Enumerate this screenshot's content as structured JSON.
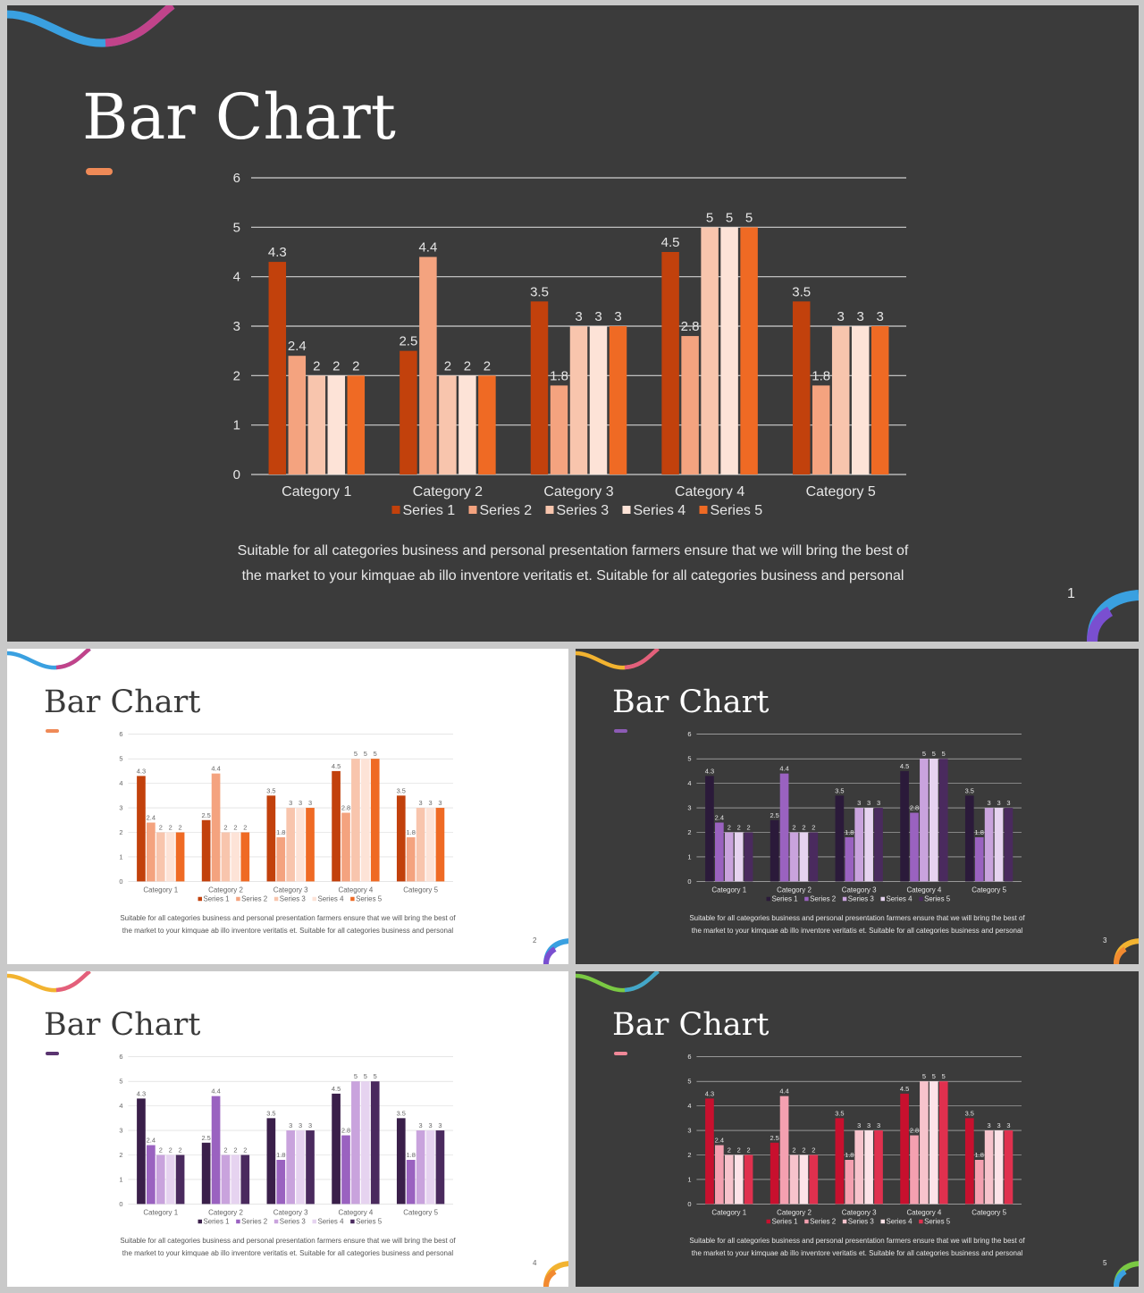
{
  "slides": [
    {
      "title": "Bar Chart",
      "page": "1",
      "body_lines": [
        "Suitable  for  all  categories  business  and  personal  presentation  farmers  ensure  that  we  will  bring  the  best  of",
        "the  market  to  your  kimquae  ab  illo  inventore  veritatis  et.  Suitable  for  all  categories  business  and  personal"
      ],
      "theme": "dark",
      "colors": {
        "series": [
          "#c2410c",
          "#f4a37f",
          "#f8c5ad",
          "#fde3d7",
          "#ef6a24"
        ],
        "accent": "#ef8a57",
        "ribbon": [
          "#3aa0e0",
          "#7a4fd0",
          "#d9327a"
        ],
        "corner": [
          "#3aa0e0",
          "#7a4fd0"
        ]
      }
    },
    {
      "title": "Bar Chart",
      "page": "2",
      "body_lines": [
        "Suitable  for  all  categories  business  and  personal  presentation  farmers  ensure  that  we  will  bring  the  best  of",
        "the  market  to  your  kimquae  ab  illo  inventore  veritatis  et.  Suitable  for  all  categories  business  and  personal"
      ],
      "theme": "light",
      "colors": {
        "series": [
          "#c2410c",
          "#f4a37f",
          "#f8c5ad",
          "#fde3d7",
          "#ef6a24"
        ],
        "accent": "#ef8a57",
        "ribbon": [
          "#3aa0e0",
          "#7a4fd0",
          "#d9327a"
        ],
        "corner": [
          "#3aa0e0",
          "#7a4fd0"
        ]
      }
    },
    {
      "title": "Bar Chart",
      "page": "3",
      "body_lines": [
        "Suitable  for  all  categories  business  and  personal  presentation  farmers  ensure  that  we  will  bring  the  best  of",
        "the  market  to  your  kimquae  ab  illo  inventore  veritatis  et.  Suitable  for  all  categories  business  and  personal"
      ],
      "theme": "dark",
      "colors": {
        "series": [
          "#2b1a3a",
          "#9a62c0",
          "#c9a3dd",
          "#e6d3f0",
          "#4a2a5e"
        ],
        "accent": "#8c5bb5",
        "ribbon": [
          "#f2b330",
          "#f2a040",
          "#e0508a"
        ],
        "corner": [
          "#f2b330",
          "#f28a30"
        ]
      }
    },
    {
      "title": "Bar Chart",
      "page": "4",
      "body_lines": [
        "Suitable  for  all  categories  business  and  personal  presentation  farmers  ensure  that  we  will  bring  the  best  of",
        "the  market  to  your  kimquae  ab  illo  inventore  veritatis  et.  Suitable  for  all  categories  business  and  personal"
      ],
      "theme": "light",
      "colors": {
        "series": [
          "#3a1f4a",
          "#9a62c0",
          "#c9a3dd",
          "#e6d3f0",
          "#4a2a5e"
        ],
        "accent": "#5a3470",
        "ribbon": [
          "#f2b330",
          "#f2a040",
          "#e0508a"
        ],
        "corner": [
          "#f2b330",
          "#f28a30"
        ]
      }
    },
    {
      "title": "Bar Chart",
      "page": "5",
      "body_lines": [
        "Suitable  for  all  categories  business  and  personal  presentation  farmers  ensure  that  we  will  bring  the  best  of",
        "the  market  to  your  kimquae  ab  illo  inventore  veritatis  et.  Suitable  for  all  categories  business  and  personal"
      ],
      "theme": "dark",
      "colors": {
        "series": [
          "#c8102e",
          "#f4a0b0",
          "#f7c3cc",
          "#fde3e8",
          "#e0304e"
        ],
        "accent": "#f08898",
        "ribbon": [
          "#7ac943",
          "#3aa0e0",
          "#f2b330"
        ],
        "corner": [
          "#7ac943",
          "#3aa0e0"
        ]
      }
    }
  ],
  "chart_data": {
    "type": "bar",
    "categories": [
      "Category 1",
      "Category 2",
      "Category 3",
      "Category 4",
      "Category 5"
    ],
    "series": [
      {
        "name": "Series 1",
        "values": [
          4.3,
          2.5,
          3.5,
          4.5,
          3.5
        ]
      },
      {
        "name": "Series 2",
        "values": [
          2.4,
          4.4,
          1.8,
          2.8,
          1.8
        ]
      },
      {
        "name": "Series 3",
        "values": [
          2,
          2,
          3,
          5,
          3
        ]
      },
      {
        "name": "Series 4",
        "values": [
          2,
          2,
          3,
          5,
          3
        ]
      },
      {
        "name": "Series 5",
        "values": [
          2,
          2,
          3,
          5,
          3
        ]
      }
    ],
    "y_ticks": [
      "0",
      "1",
      "2",
      "3",
      "4",
      "5",
      "6"
    ],
    "ylim": [
      0,
      6
    ],
    "data_labels": true,
    "legend_position": "bottom",
    "grid": true
  }
}
